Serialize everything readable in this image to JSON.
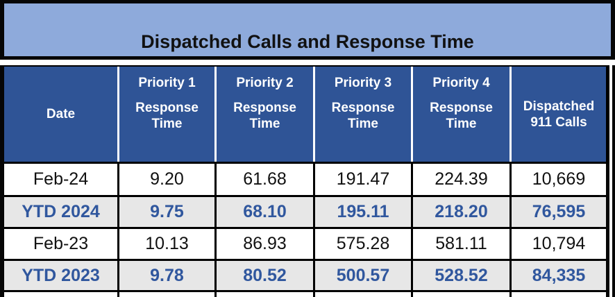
{
  "title": "Dispatched Calls and Response Time",
  "colors": {
    "title_bar_bg": "#8EAADB",
    "header_bg": "#2F5496",
    "header_text": "#FFFFFF",
    "ytd_row_bg": "#E7E7E7",
    "ytd_text": "#30579E",
    "plain_row_bg": "#FFFFFF",
    "border": "#000000"
  },
  "header": {
    "date_label": "Date",
    "priorities": [
      {
        "title": "Priority 1",
        "sub1": "Response",
        "sub2": "Time"
      },
      {
        "title": "Priority 2",
        "sub1": "Response",
        "sub2": "Time"
      },
      {
        "title": "Priority 3",
        "sub1": "Response",
        "sub2": "Time"
      },
      {
        "title": "Priority 4",
        "sub1": "Response",
        "sub2": "Time"
      }
    ],
    "dispatched": {
      "line1": "Dispatched",
      "line2": "911 Calls"
    }
  },
  "rows": [
    {
      "label": "Feb-24",
      "v1": "9.20",
      "v2": "61.68",
      "v3": "191.47",
      "v4": "224.39",
      "v5": "10,669"
    },
    {
      "label": "YTD 2024",
      "v1": "9.75",
      "v2": "68.10",
      "v3": "195.11",
      "v4": "218.20",
      "v5": "76,595"
    },
    {
      "label": "Feb-23",
      "v1": "10.13",
      "v2": "86.93",
      "v3": "575.28",
      "v4": "581.11",
      "v5": "10,794"
    },
    {
      "label": "YTD 2023",
      "v1": "9.78",
      "v2": "80.52",
      "v3": "500.57",
      "v4": "528.52",
      "v5": "84,335"
    }
  ],
  "chart_data": {
    "type": "table",
    "title": "Dispatched Calls and Response Time",
    "columns": [
      "Date",
      "Priority 1 Response Time",
      "Priority 2 Response Time",
      "Priority 3 Response Time",
      "Priority 4 Response Time",
      "Dispatched 911 Calls"
    ],
    "rows": [
      [
        "Feb-24",
        9.2,
        61.68,
        191.47,
        224.39,
        10669
      ],
      [
        "YTD 2024",
        9.75,
        68.1,
        195.11,
        218.2,
        76595
      ],
      [
        "Feb-23",
        10.13,
        86.93,
        575.28,
        581.11,
        10794
      ],
      [
        "YTD 2023",
        9.78,
        80.52,
        500.57,
        528.52,
        84335
      ]
    ],
    "row_styles": [
      "plain",
      "ytd-highlight",
      "plain",
      "ytd-highlight"
    ]
  }
}
